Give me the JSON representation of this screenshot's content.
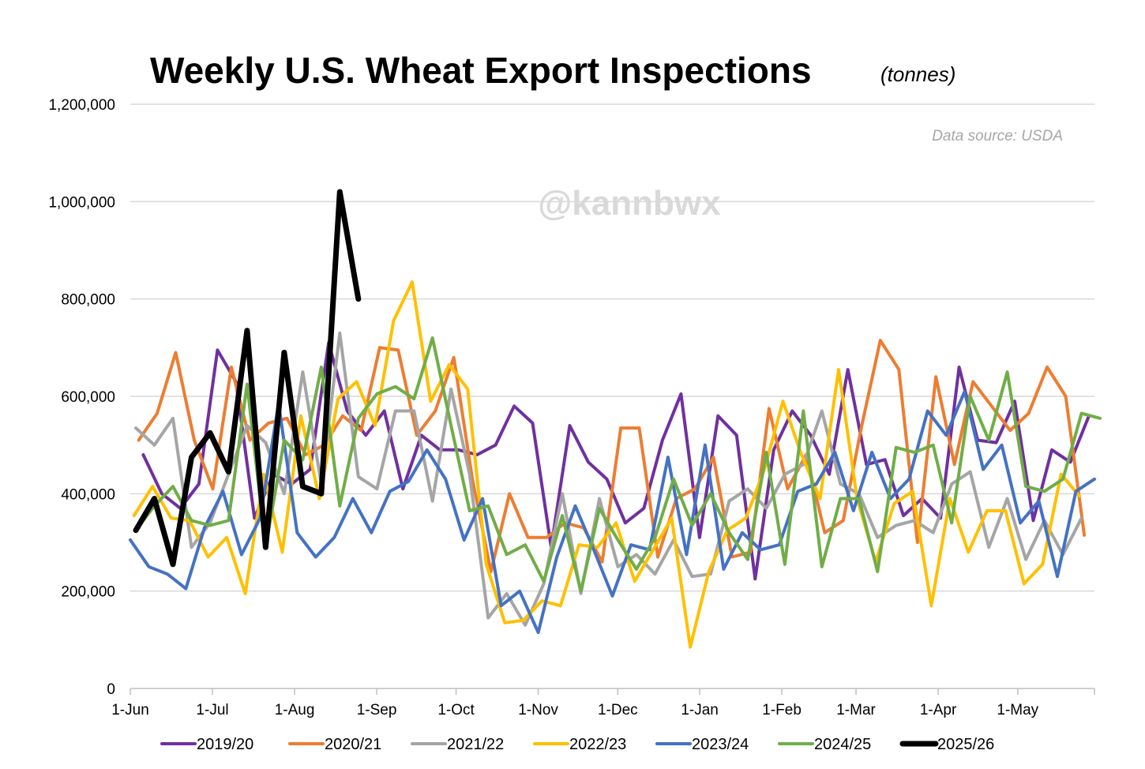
{
  "chart_data": {
    "type": "line",
    "title": "Weekly U.S. Wheat Export Inspections",
    "subtitle": "(tonnes)",
    "source": "Data source: USDA",
    "watermark": "@kannbwx",
    "xlabel": "",
    "ylabel": "",
    "ylim": [
      0,
      1200000
    ],
    "weeks_in_year": 52,
    "yticks": [
      {
        "value": 0,
        "label": "0"
      },
      {
        "value": 200000,
        "label": "200,000"
      },
      {
        "value": 400000,
        "label": "400,000"
      },
      {
        "value": 600000,
        "label": "600,000"
      },
      {
        "value": 800000,
        "label": "800,000"
      },
      {
        "value": 1000000,
        "label": "1,000,000"
      },
      {
        "value": 1200000,
        "label": "1,200,000"
      }
    ],
    "xticks": [
      {
        "week": 0,
        "label": "1-Jun"
      },
      {
        "week": 4.43,
        "label": "1-Jul"
      },
      {
        "week": 8.86,
        "label": "1-Aug"
      },
      {
        "week": 13.29,
        "label": "1-Sep"
      },
      {
        "week": 17.57,
        "label": "1-Oct"
      },
      {
        "week": 22,
        "label": "1-Nov"
      },
      {
        "week": 26.29,
        "label": "1-Dec"
      },
      {
        "week": 30.71,
        "label": "1-Jan"
      },
      {
        "week": 35.14,
        "label": "1-Feb"
      },
      {
        "week": 39.14,
        "label": "1-Mar"
      },
      {
        "week": 43.57,
        "label": "1-Apr"
      },
      {
        "week": 47.86,
        "label": "1-May"
      }
    ],
    "grid": true,
    "legend_position": "bottom",
    "series": [
      {
        "name": "2019/20",
        "color": "#7030a0",
        "width": 4,
        "start_week": 0.7,
        "values": [
          480000,
          400000,
          370000,
          420000,
          695000,
          630000,
          350000,
          440000,
          420000,
          450000,
          710000,
          570000,
          520000,
          570000,
          410000,
          520000,
          490000,
          490000,
          480000,
          500000,
          580000,
          545000,
          290000,
          540000,
          465000,
          430000,
          340000,
          370000,
          510000,
          605000,
          310000,
          560000,
          520000,
          225000,
          490000,
          570000,
          520000,
          440000,
          655000,
          460000,
          470000,
          355000,
          390000,
          350000,
          660000,
          510000,
          505000,
          590000,
          345000,
          490000,
          465000,
          560000
        ]
      },
      {
        "name": "2020/21",
        "color": "#ed7d31",
        "width": 4,
        "start_week": 0.45,
        "values": [
          510000,
          565000,
          690000,
          510000,
          410000,
          660000,
          510000,
          545000,
          555000,
          480000,
          500000,
          560000,
          530000,
          700000,
          695000,
          520000,
          570000,
          680000,
          430000,
          240000,
          400000,
          310000,
          310000,
          340000,
          330000,
          260000,
          535000,
          535000,
          270000,
          390000,
          410000,
          475000,
          270000,
          280000,
          575000,
          410000,
          480000,
          320000,
          345000,
          540000,
          715000,
          655000,
          300000,
          640000,
          460000,
          630000,
          580000,
          530000,
          565000,
          660000,
          600000,
          315000
        ]
      },
      {
        "name": "2021/22",
        "color": "#a5a5a5",
        "width": 4,
        "start_week": 0.3,
        "values": [
          535000,
          500000,
          555000,
          290000,
          340000,
          440000,
          540000,
          505000,
          400000,
          650000,
          420000,
          730000,
          435000,
          410000,
          570000,
          570000,
          385000,
          615000,
          440000,
          145000,
          195000,
          130000,
          215000,
          400000,
          195000,
          390000,
          250000,
          275000,
          235000,
          305000,
          230000,
          235000,
          385000,
          410000,
          370000,
          440000,
          460000,
          570000,
          420000,
          400000,
          310000,
          335000,
          345000,
          320000,
          420000,
          445000,
          290000,
          390000,
          265000,
          345000,
          275000,
          350000
        ]
      },
      {
        "name": "2022/23",
        "color": "#ffc000",
        "width": 4,
        "start_week": 0.2,
        "values": [
          355000,
          415000,
          350000,
          345000,
          270000,
          310000,
          195000,
          440000,
          280000,
          560000,
          390000,
          595000,
          630000,
          540000,
          755000,
          835000,
          590000,
          665000,
          615000,
          255000,
          135000,
          140000,
          180000,
          170000,
          295000,
          290000,
          340000,
          220000,
          285000,
          350000,
          85000,
          240000,
          325000,
          350000,
          450000,
          590000,
          480000,
          390000,
          655000,
          390000,
          260000,
          380000,
          405000,
          170000,
          390000,
          280000,
          365000,
          365000,
          215000,
          255000,
          440000,
          395000
        ]
      },
      {
        "name": "2023/24",
        "color": "#4472c4",
        "width": 4,
        "start_week": 0,
        "values": [
          305000,
          250000,
          235000,
          205000,
          330000,
          405000,
          275000,
          350000,
          585000,
          320000,
          270000,
          310000,
          390000,
          320000,
          405000,
          425000,
          490000,
          430000,
          305000,
          390000,
          170000,
          200000,
          115000,
          270000,
          375000,
          285000,
          190000,
          295000,
          285000,
          475000,
          275000,
          500000,
          245000,
          320000,
          285000,
          295000,
          405000,
          420000,
          485000,
          365000,
          485000,
          390000,
          430000,
          570000,
          520000,
          610000,
          450000,
          500000,
          340000,
          385000,
          230000,
          405000,
          430000
        ]
      },
      {
        "name": "2024/25",
        "color": "#70ad47",
        "width": 4,
        "start_week": 0.3,
        "values": [
          325000,
          375000,
          415000,
          345000,
          335000,
          345000,
          625000,
          290000,
          510000,
          470000,
          660000,
          375000,
          555000,
          605000,
          620000,
          595000,
          720000,
          540000,
          365000,
          375000,
          275000,
          295000,
          220000,
          355000,
          200000,
          370000,
          305000,
          245000,
          310000,
          430000,
          335000,
          400000,
          320000,
          265000,
          485000,
          255000,
          570000,
          250000,
          390000,
          390000,
          240000,
          495000,
          485000,
          500000,
          340000,
          600000,
          510000,
          650000,
          415000,
          405000,
          430000,
          565000,
          555000
        ]
      },
      {
        "name": "2025/26",
        "color": "#000000",
        "width": 7,
        "start_week": 0.3,
        "values": [
          325000,
          390000,
          255000,
          475000,
          525000,
          445000,
          735000,
          290000,
          690000,
          415000,
          400000,
          1020000,
          800000
        ]
      }
    ]
  }
}
